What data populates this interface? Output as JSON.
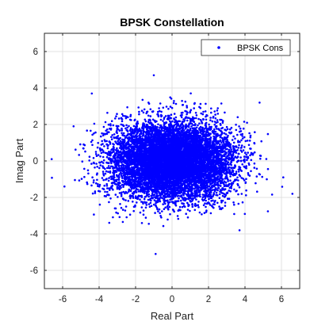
{
  "chart_data": {
    "type": "scatter",
    "title": "BPSK Constellation",
    "xlabel": "Real Part",
    "ylabel": "Imag Part",
    "xlim": [
      -7,
      7
    ],
    "ylim": [
      -7,
      7
    ],
    "xticks": [
      -6,
      -4,
      -2,
      0,
      2,
      4,
      6
    ],
    "yticks": [
      -6,
      -4,
      -2,
      0,
      2,
      4,
      6
    ],
    "grid": true,
    "legend_position": "top-right",
    "series": [
      {
        "name": "BPSK Cons",
        "color": "#0000ff",
        "marker": "dot",
        "distribution": {
          "clusters": [
            {
              "center": [
                -1,
                0
              ],
              "std": [
                1.35,
                1.05
              ]
            },
            {
              "center": [
                1,
                0
              ],
              "std": [
                1.35,
                1.05
              ]
            }
          ]
        },
        "outliers": [
          [
            -6.6,
            0.1
          ],
          [
            -5.4,
            1.9
          ],
          [
            6.6,
            -1.8
          ],
          [
            -0.9,
            -5.1
          ],
          [
            -1,
            4.7
          ],
          [
            6.1,
            -0.9
          ],
          [
            -5.9,
            -1.4
          ],
          [
            3.7,
            -3.8
          ],
          [
            -4.4,
            3.7
          ],
          [
            4.8,
            3.2
          ]
        ]
      }
    ]
  }
}
